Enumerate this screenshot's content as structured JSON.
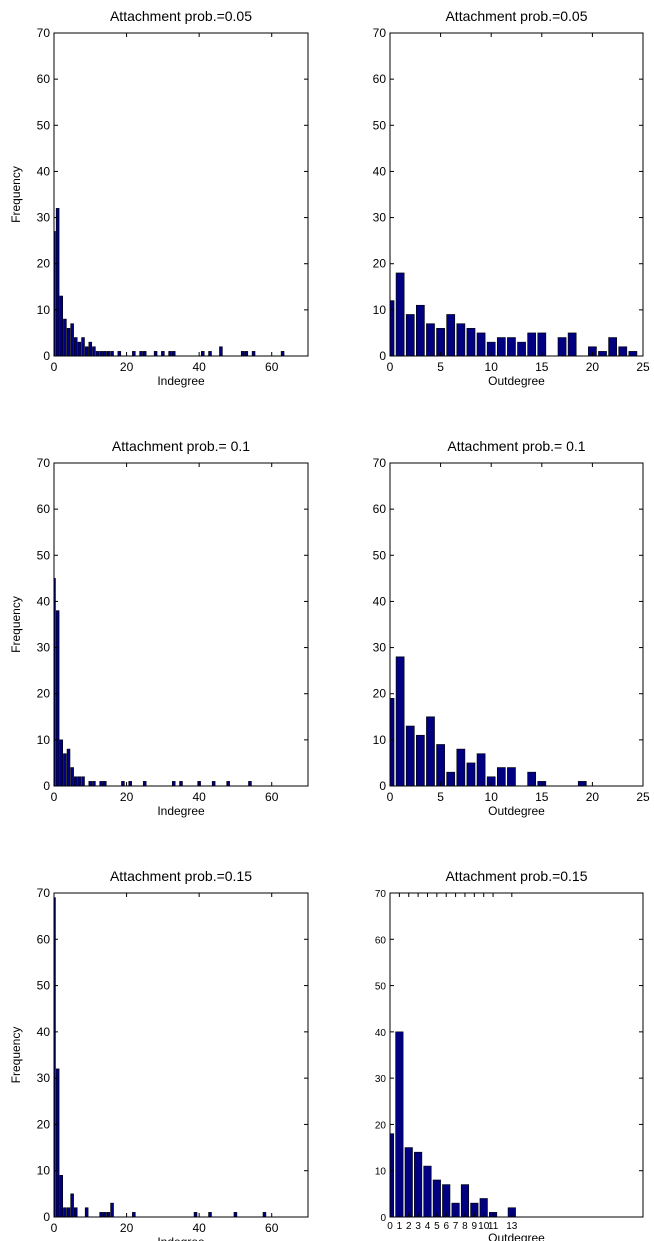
{
  "chart_data": [
    {
      "type": "bar",
      "title": "Attachment prob.=0.05",
      "xlabel": "Indegree",
      "ylabel": "Frequency",
      "xlim": [
        0,
        70
      ],
      "ylim": [
        0,
        70
      ],
      "xticks": [
        0,
        20,
        40,
        60
      ],
      "yticks": [
        0,
        10,
        20,
        30,
        40,
        50,
        60,
        70
      ],
      "x": [
        0,
        1,
        2,
        3,
        4,
        5,
        6,
        7,
        8,
        9,
        10,
        11,
        12,
        13,
        14,
        15,
        16,
        18,
        22,
        24,
        25,
        28,
        30,
        32,
        33,
        41,
        43,
        46,
        52,
        53,
        55,
        63
      ],
      "values": [
        27,
        32,
        13,
        8,
        6,
        7,
        4,
        3,
        4,
        2,
        3,
        2,
        1,
        1,
        1,
        1,
        1,
        1,
        1,
        1,
        1,
        1,
        1,
        1,
        1,
        1,
        1,
        2,
        1,
        1,
        1,
        1
      ],
      "color": "#000080"
    },
    {
      "type": "bar",
      "title": "Attachment prob.=0.05",
      "xlabel": "Outdegree",
      "ylabel": "",
      "xlim": [
        0,
        25
      ],
      "ylim": [
        0,
        70
      ],
      "xticks": [
        0,
        5,
        10,
        15,
        20,
        25
      ],
      "yticks": [
        0,
        10,
        20,
        30,
        40,
        50,
        60,
        70
      ],
      "x": [
        0,
        1,
        2,
        3,
        4,
        5,
        6,
        7,
        8,
        9,
        10,
        11,
        12,
        13,
        14,
        15,
        16,
        17,
        18,
        19,
        20,
        21,
        22,
        23,
        24
      ],
      "values": [
        12,
        18,
        9,
        11,
        7,
        6,
        9,
        7,
        6,
        5,
        3,
        4,
        4,
        3,
        5,
        5,
        0,
        4,
        5,
        0,
        2,
        1,
        4,
        2,
        1
      ],
      "color": "#000080"
    },
    {
      "type": "bar",
      "title": "Attachment prob.= 0.1",
      "xlabel": "Indegree",
      "ylabel": "Frequency",
      "xlim": [
        0,
        70
      ],
      "ylim": [
        0,
        70
      ],
      "xticks": [
        0,
        20,
        40,
        60
      ],
      "yticks": [
        0,
        10,
        20,
        30,
        40,
        50,
        60,
        70
      ],
      "x": [
        0,
        1,
        2,
        3,
        4,
        5,
        6,
        7,
        8,
        10,
        11,
        13,
        14,
        19,
        21,
        25,
        33,
        35,
        40,
        44,
        48,
        54
      ],
      "values": [
        45,
        38,
        10,
        7,
        8,
        4,
        2,
        2,
        2,
        1,
        1,
        1,
        1,
        1,
        1,
        1,
        1,
        1,
        1,
        1,
        1,
        1
      ],
      "color": "#000080"
    },
    {
      "type": "bar",
      "title": "Attachment prob.= 0.1",
      "xlabel": "Outdegree",
      "ylabel": "",
      "xlim": [
        0,
        25
      ],
      "ylim": [
        0,
        70
      ],
      "xticks": [
        0,
        5,
        10,
        15,
        20,
        25
      ],
      "yticks": [
        0,
        10,
        20,
        30,
        40,
        50,
        60,
        70
      ],
      "x": [
        0,
        1,
        2,
        3,
        4,
        5,
        6,
        7,
        8,
        9,
        10,
        11,
        12,
        13,
        14,
        15,
        16,
        17,
        18,
        19,
        20,
        21,
        22,
        23,
        24
      ],
      "values": [
        19,
        28,
        13,
        11,
        15,
        9,
        3,
        8,
        5,
        7,
        2,
        4,
        4,
        0,
        3,
        1,
        0,
        0,
        0,
        1,
        0,
        0,
        0,
        0,
        0
      ],
      "color": "#000080"
    },
    {
      "type": "bar",
      "title": "Attachment prob.=0.15",
      "xlabel": "Indegree",
      "ylabel": "Frequency",
      "xlim": [
        0,
        70
      ],
      "ylim": [
        0,
        70
      ],
      "xticks": [
        0,
        20,
        40,
        60
      ],
      "yticks": [
        0,
        10,
        20,
        30,
        40,
        50,
        60,
        70
      ],
      "x": [
        0,
        1,
        2,
        3,
        4,
        5,
        6,
        9,
        13,
        14,
        15,
        16,
        22,
        39,
        43,
        50,
        58
      ],
      "values": [
        69,
        32,
        9,
        2,
        2,
        5,
        2,
        2,
        1,
        1,
        1,
        3,
        1,
        1,
        1,
        1,
        1
      ],
      "color": "#000080"
    },
    {
      "type": "bar",
      "title": "Attachment prob.=0.15",
      "xlabel": "Outdegree",
      "ylabel": "",
      "xlim": [
        0,
        27
      ],
      "ylim": [
        0,
        70
      ],
      "xticks": [
        0,
        1,
        2,
        3,
        4,
        5,
        6,
        7,
        8,
        9,
        10,
        11,
        13
      ],
      "yticks": [
        0,
        10,
        20,
        30,
        40,
        50,
        60,
        70
      ],
      "x": [
        0,
        1,
        2,
        3,
        4,
        5,
        6,
        7,
        8,
        9,
        10,
        11,
        12,
        13
      ],
      "values": [
        18,
        40,
        15,
        14,
        11,
        8,
        7,
        3,
        7,
        3,
        4,
        1,
        0,
        2
      ],
      "color": "#000080"
    }
  ]
}
